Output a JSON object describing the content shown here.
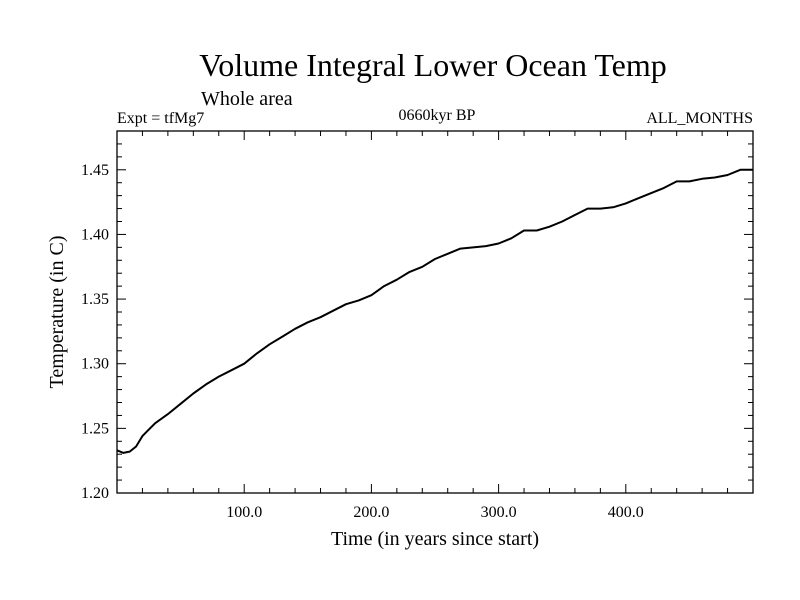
{
  "chart_data": {
    "type": "line",
    "title": "Volume Integral Lower Ocean Temp",
    "subtitle": "Whole area",
    "header_left": "Expt = tfMg7",
    "header_center": "0660kyr BP",
    "header_right": "ALL_MONTHS",
    "xlabel": "Time (in years since start)",
    "ylabel": "Temperature (in C)",
    "xlim": [
      0,
      500
    ],
    "ylim": [
      1.2,
      1.48
    ],
    "x_ticks": [
      100,
      200,
      300,
      400
    ],
    "x_tick_labels": [
      "100.0",
      "200.0",
      "300.0",
      "400.0"
    ],
    "y_ticks": [
      1.2,
      1.25,
      1.3,
      1.35,
      1.4,
      1.45
    ],
    "y_tick_labels": [
      "1.20",
      "1.25",
      "1.30",
      "1.35",
      "1.40",
      "1.45"
    ],
    "series": [
      {
        "color": "#000000",
        "x": [
          0,
          5,
          10,
          15,
          20,
          25,
          30,
          40,
          50,
          60,
          70,
          80,
          90,
          100,
          110,
          120,
          130,
          140,
          150,
          160,
          170,
          180,
          190,
          200,
          210,
          220,
          230,
          240,
          250,
          260,
          270,
          280,
          290,
          300,
          310,
          320,
          330,
          340,
          350,
          360,
          370,
          380,
          390,
          400,
          410,
          420,
          430,
          440,
          450,
          460,
          470,
          480,
          490,
          500
        ],
        "y": [
          1.233,
          1.231,
          1.232,
          1.236,
          1.244,
          1.249,
          1.254,
          1.261,
          1.269,
          1.277,
          1.284,
          1.29,
          1.295,
          1.3,
          1.308,
          1.315,
          1.321,
          1.327,
          1.332,
          1.336,
          1.341,
          1.346,
          1.349,
          1.353,
          1.36,
          1.365,
          1.371,
          1.375,
          1.381,
          1.385,
          1.389,
          1.39,
          1.391,
          1.393,
          1.397,
          1.403,
          1.403,
          1.406,
          1.41,
          1.415,
          1.42,
          1.42,
          1.421,
          1.424,
          1.428,
          1.432,
          1.436,
          1.441,
          1.441,
          1.443,
          1.444,
          1.446,
          1.45,
          1.45
        ]
      }
    ]
  }
}
